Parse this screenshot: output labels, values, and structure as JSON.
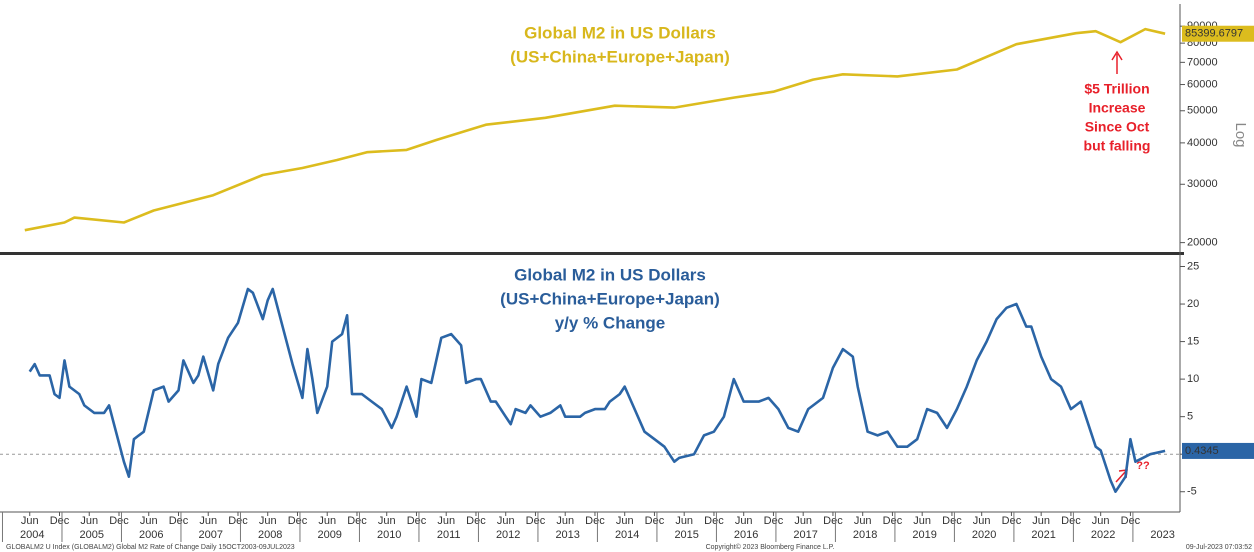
{
  "chart_data": [
    {
      "type": "line",
      "title": "Global M2 in US Dollars",
      "subtitle": "(US+China+Europe+Japan)",
      "yscale": "log",
      "axis_label": "Log",
      "xlim": [
        "2003-12",
        "2023-10"
      ],
      "ylim": [
        19000,
        105000
      ],
      "yticks": [
        20000,
        30000,
        40000,
        50000,
        60000,
        70000,
        80000,
        90000
      ],
      "annotations": [
        "$5 Trillion",
        "Increase",
        "Since Oct",
        "but falling"
      ],
      "last_value_label": "85399.6797",
      "series": [
        {
          "color": "#dcbc1e",
          "x": [
            "2004-05",
            "2005-01",
            "2005-03",
            "2006-01",
            "2006-07",
            "2007-07",
            "2008-05",
            "2009-01",
            "2009-08",
            "2010-02",
            "2010-10",
            "2011-04",
            "2012-02",
            "2013-02",
            "2014-04",
            "2015-04",
            "2016-04",
            "2016-12",
            "2017-08",
            "2018-02",
            "2019-01",
            "2020-01",
            "2021-01",
            "2022-01",
            "2022-05",
            "2022-10",
            "2023-03",
            "2023-07"
          ],
          "values": [
            21800,
            23000,
            23800,
            23000,
            25000,
            27800,
            32000,
            33600,
            35500,
            37500,
            38100,
            40800,
            45400,
            47600,
            51800,
            51100,
            54800,
            57100,
            62100,
            64400,
            63500,
            66600,
            79400,
            85700,
            86900,
            80500,
            88200,
            85399.6797
          ]
        }
      ]
    },
    {
      "type": "line",
      "title": "Global M2 in US Dollars",
      "subtitle": "(US+China+Europe+Japan)",
      "subtitle2": "y/y % Change",
      "xlim": [
        "2003-12",
        "2023-10"
      ],
      "ylim": [
        -7.7,
        26.4
      ],
      "yticks": [
        -5,
        0,
        5,
        10,
        15,
        20,
        25
      ],
      "hline": 0,
      "annotation": "??",
      "last_value_label": "0.4345",
      "xticks": [
        {
          "value": "2004-06",
          "label": "Jun"
        },
        {
          "value": "2004-12",
          "label": "Dec"
        },
        {
          "value": "2005-06",
          "label": "Jun"
        },
        {
          "value": "2005-12",
          "label": "Dec"
        },
        {
          "value": "2006-06",
          "label": "Jun"
        },
        {
          "value": "2006-12",
          "label": "Dec"
        },
        {
          "value": "2007-06",
          "label": "Jun"
        },
        {
          "value": "2007-12",
          "label": "Dec"
        },
        {
          "value": "2008-06",
          "label": "Jun"
        },
        {
          "value": "2008-12",
          "label": "Dec"
        },
        {
          "value": "2009-06",
          "label": "Jun"
        },
        {
          "value": "2009-12",
          "label": "Dec"
        },
        {
          "value": "2010-06",
          "label": "Jun"
        },
        {
          "value": "2010-12",
          "label": "Dec"
        },
        {
          "value": "2011-06",
          "label": "Jun"
        },
        {
          "value": "2011-12",
          "label": "Dec"
        },
        {
          "value": "2012-06",
          "label": "Jun"
        },
        {
          "value": "2012-12",
          "label": "Dec"
        },
        {
          "value": "2013-06",
          "label": "Jun"
        },
        {
          "value": "2013-12",
          "label": "Dec"
        },
        {
          "value": "2014-06",
          "label": "Jun"
        },
        {
          "value": "2014-12",
          "label": "Dec"
        },
        {
          "value": "2015-06",
          "label": "Jun"
        },
        {
          "value": "2015-12",
          "label": "Dec"
        },
        {
          "value": "2016-06",
          "label": "Jun"
        },
        {
          "value": "2016-12",
          "label": "Dec"
        },
        {
          "value": "2017-06",
          "label": "Jun"
        },
        {
          "value": "2017-12",
          "label": "Dec"
        },
        {
          "value": "2018-06",
          "label": "Jun"
        },
        {
          "value": "2018-12",
          "label": "Dec"
        },
        {
          "value": "2019-06",
          "label": "Jun"
        },
        {
          "value": "2019-12",
          "label": "Dec"
        },
        {
          "value": "2020-06",
          "label": "Jun"
        },
        {
          "value": "2020-12",
          "label": "Dec"
        },
        {
          "value": "2021-06",
          "label": "Jun"
        },
        {
          "value": "2021-12",
          "label": "Dec"
        },
        {
          "value": "2022-06",
          "label": "Jun"
        },
        {
          "value": "2022-12",
          "label": "Dec"
        }
      ],
      "years": [
        "2004",
        "2005",
        "2006",
        "2007",
        "2008",
        "2009",
        "2010",
        "2011",
        "2012",
        "2013",
        "2014",
        "2015",
        "2016",
        "2017",
        "2018",
        "2019",
        "2020",
        "2021",
        "2022",
        "2023"
      ],
      "series": [
        {
          "color": "#2b65a6",
          "x": [
            "2004-06",
            "2004-07",
            "2004-08",
            "2004-10",
            "2004-11",
            "2004-12",
            "2005-01",
            "2005-02",
            "2005-04",
            "2005-05",
            "2005-07",
            "2005-09",
            "2005-10",
            "2005-11",
            "2006-01",
            "2006-02",
            "2006-03",
            "2006-04",
            "2006-05",
            "2006-07",
            "2006-09",
            "2006-10",
            "2006-12",
            "2007-01",
            "2007-03",
            "2007-04",
            "2007-05",
            "2007-07",
            "2007-08",
            "2007-10",
            "2007-12",
            "2008-02",
            "2008-03",
            "2008-05",
            "2008-06",
            "2008-07",
            "2008-09",
            "2008-11",
            "2009-01",
            "2009-02",
            "2009-03",
            "2009-04",
            "2009-06",
            "2009-07",
            "2009-09",
            "2009-10",
            "2009-11",
            "2010-01",
            "2010-03",
            "2010-05",
            "2010-07",
            "2010-08",
            "2010-10",
            "2010-12",
            "2011-01",
            "2011-03",
            "2011-05",
            "2011-07",
            "2011-09",
            "2011-10",
            "2011-12",
            "2012-01",
            "2012-03",
            "2012-04",
            "2012-06",
            "2012-07",
            "2012-08",
            "2012-10",
            "2012-11",
            "2013-01",
            "2013-03",
            "2013-05",
            "2013-06",
            "2013-09",
            "2013-10",
            "2013-12",
            "2014-02",
            "2014-03",
            "2014-05",
            "2014-06",
            "2014-08",
            "2014-10",
            "2014-12",
            "2015-02",
            "2015-04",
            "2015-05",
            "2015-08",
            "2015-10",
            "2015-12",
            "2016-02",
            "2016-04",
            "2016-06",
            "2016-09",
            "2016-11",
            "2017-01",
            "2017-03",
            "2017-05",
            "2017-07",
            "2017-09",
            "2017-10",
            "2017-12",
            "2018-02",
            "2018-04",
            "2018-05",
            "2018-07",
            "2018-09",
            "2018-11",
            "2019-01",
            "2019-03",
            "2019-05",
            "2019-07",
            "2019-09",
            "2019-11",
            "2020-01",
            "2020-03",
            "2020-05",
            "2020-07",
            "2020-09",
            "2020-11",
            "2021-01",
            "2021-03",
            "2021-04",
            "2021-06",
            "2021-08",
            "2021-10",
            "2021-12",
            "2022-02",
            "2022-03",
            "2022-05",
            "2022-06",
            "2022-08",
            "2022-09",
            "2022-11",
            "2022-12",
            "2023-01",
            "2023-04",
            "2023-07"
          ],
          "values": [
            11,
            12,
            10.5,
            10.5,
            8,
            7.5,
            12.5,
            9,
            8,
            6.5,
            5.5,
            5.5,
            6.5,
            4,
            -1,
            -3,
            2,
            2.5,
            3,
            8.5,
            9,
            7,
            8.5,
            12.5,
            9.5,
            10.5,
            13,
            8.5,
            12,
            15.5,
            17.5,
            22,
            21.5,
            18,
            20.5,
            22,
            17,
            12,
            7.5,
            14,
            10,
            5.5,
            9,
            15,
            16,
            18.5,
            8,
            8,
            7,
            6,
            3.5,
            5,
            9,
            5,
            10,
            9.5,
            15.5,
            16,
            14.5,
            9.5,
            10,
            10,
            7,
            7,
            5,
            4,
            6,
            5.5,
            6.5,
            5,
            5.5,
            6.5,
            5,
            5,
            5.5,
            6,
            6,
            7,
            8,
            9,
            6,
            3,
            2,
            1,
            -1,
            -0.5,
            0,
            2.5,
            3,
            5,
            10,
            7,
            7,
            7.5,
            6,
            3.5,
            3,
            6,
            7,
            7.5,
            11.5,
            14,
            13,
            9,
            3,
            2.5,
            3,
            1,
            1,
            2,
            6,
            5.5,
            3.5,
            6,
            9,
            12.5,
            15,
            18,
            19.5,
            20,
            17,
            17,
            13,
            10,
            9,
            6,
            7,
            5,
            1,
            0.5,
            -3.5,
            -5,
            -3,
            2,
            -1,
            0,
            0.4345
          ]
        }
      ]
    }
  ],
  "footer": {
    "left": "GLOBALM2 U Index (GLOBALM2) Global M2 Rate of Change  Daily 15OCT2003-09JUL2023",
    "center": "Copyright© 2023 Bloomberg Finance L.P.",
    "right": "09-Jul-2023 07:03:52"
  }
}
